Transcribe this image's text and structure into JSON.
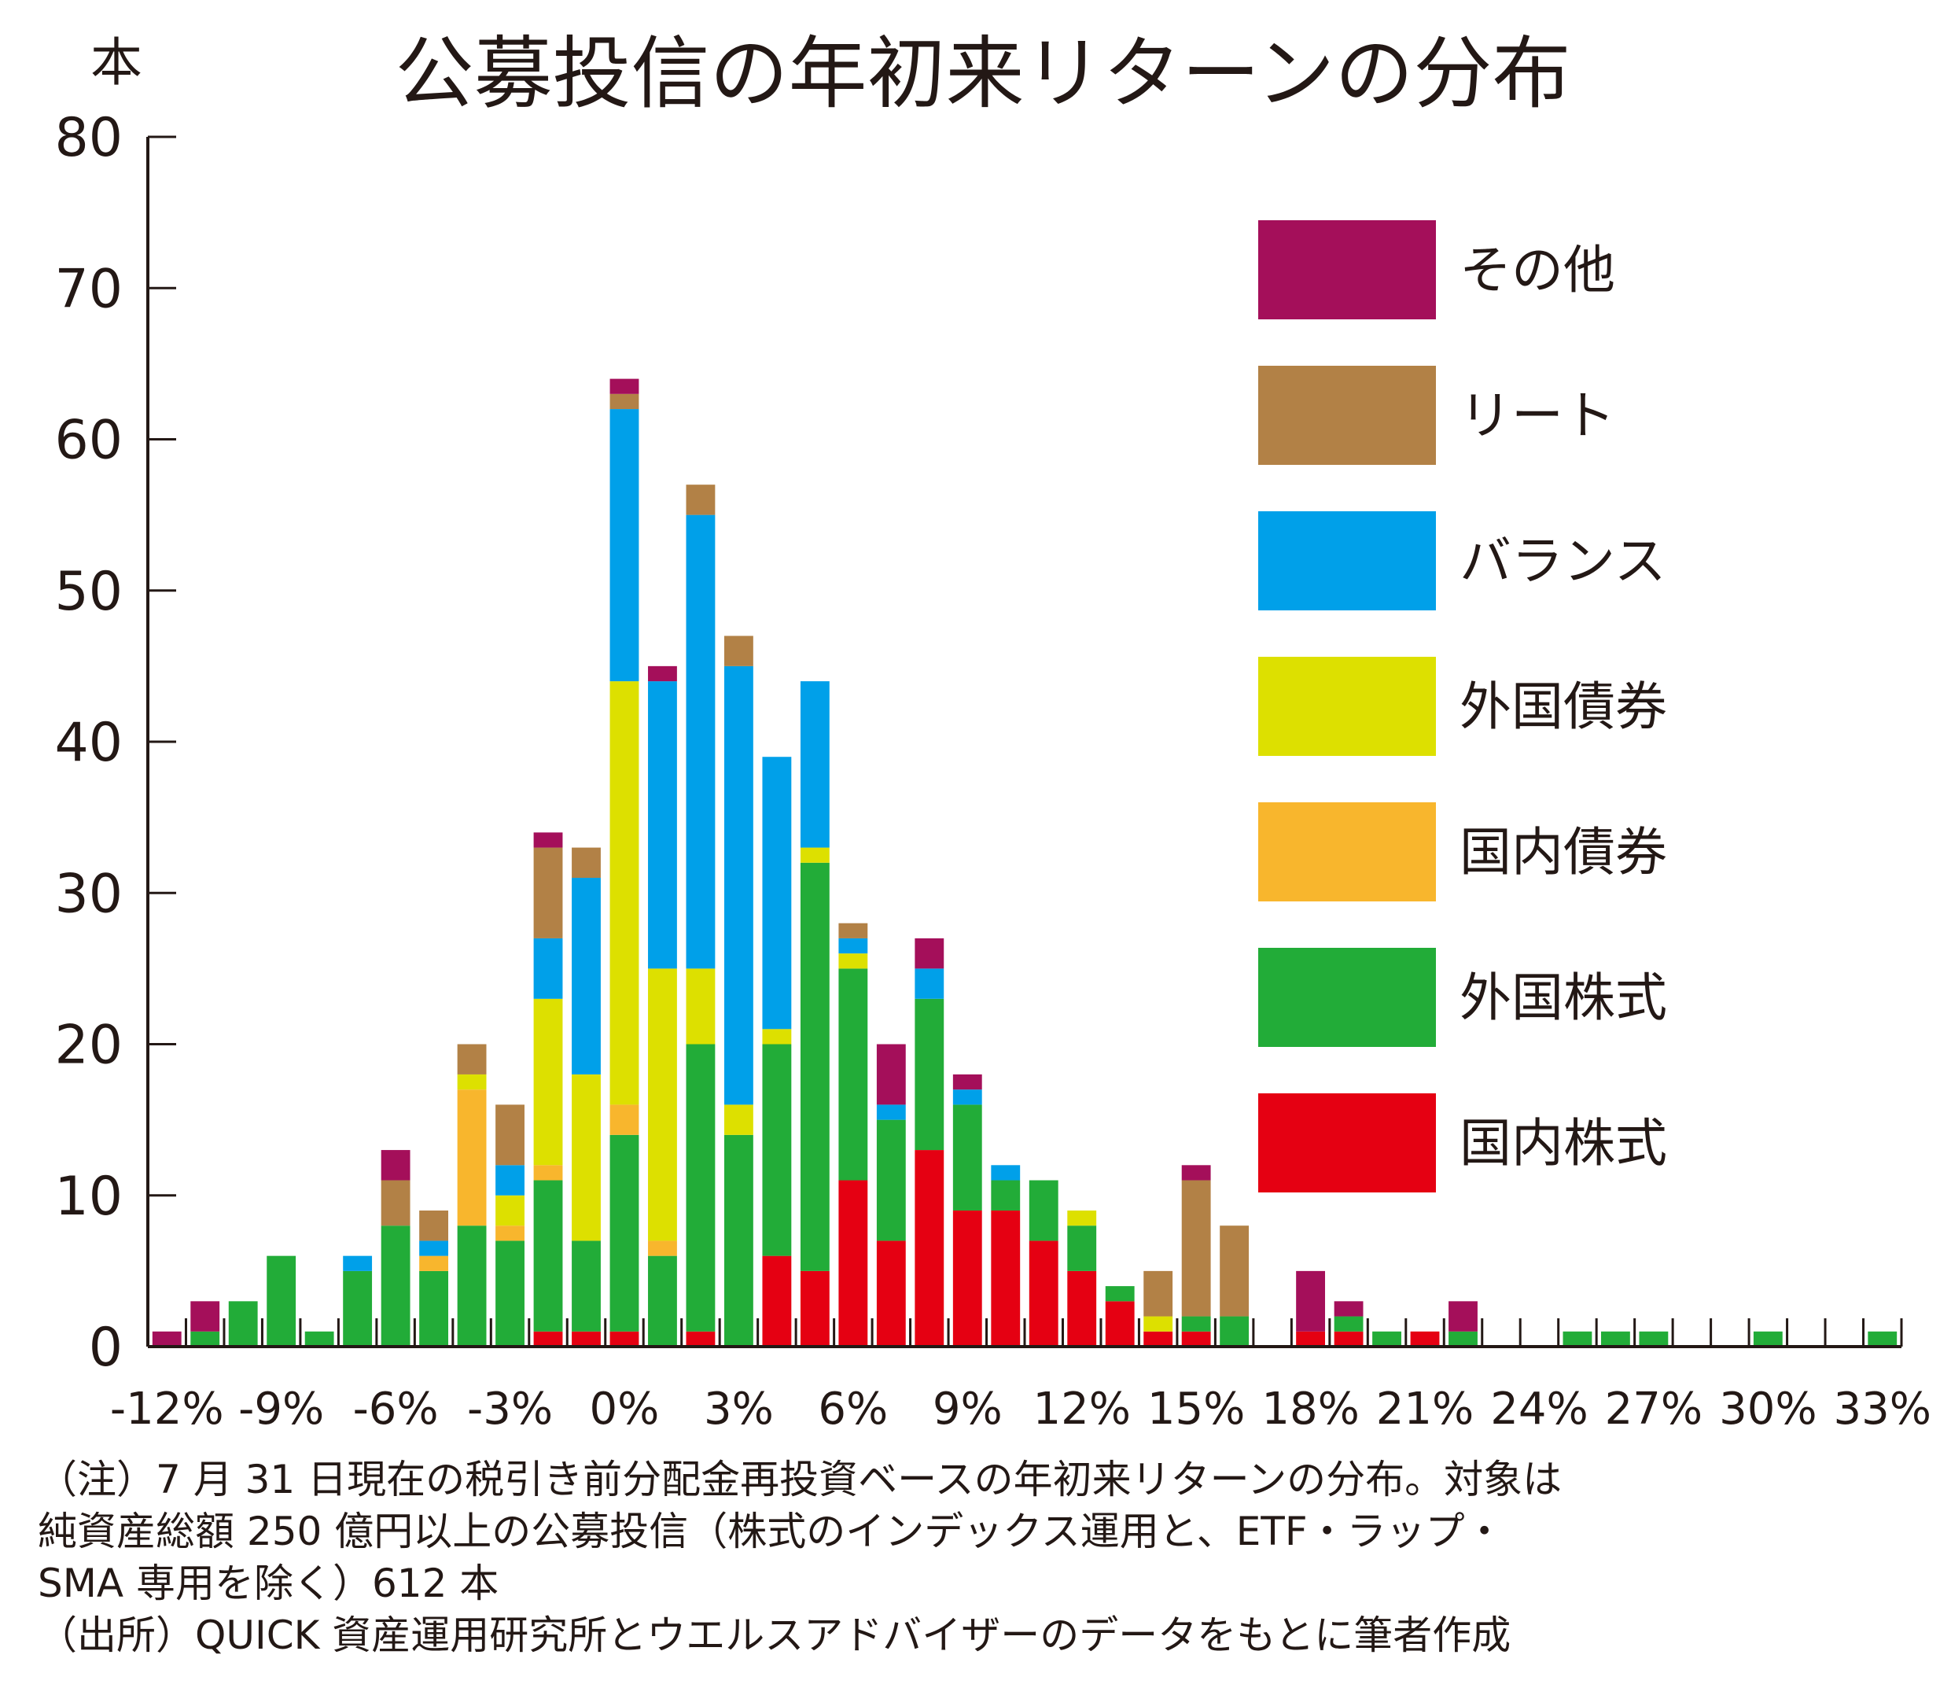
{
  "chart_data": {
    "type": "bar",
    "stacked": true,
    "title": "公募投信の年初来リターンの分布",
    "ylabel": "本",
    "ylim": [
      0,
      80
    ],
    "yticks": [
      "0",
      "10",
      "20",
      "30",
      "40",
      "50",
      "60",
      "70",
      "80"
    ],
    "xtick_labels": [
      "-12%",
      "-9%",
      "-6%",
      "-3%",
      "0%",
      "3%",
      "6%",
      "9%",
      "12%",
      "15%",
      "18%",
      "21%",
      "24%",
      "27%",
      "30%",
      "33%"
    ],
    "x": [
      -12,
      -11,
      -10,
      -9,
      -8,
      -7,
      -6,
      -5,
      -4,
      -3,
      -2,
      -1,
      0,
      1,
      2,
      3,
      4,
      5,
      6,
      7,
      8,
      9,
      10,
      11,
      12,
      13,
      14,
      15,
      16,
      17,
      18,
      19,
      20,
      21,
      22,
      23,
      24,
      25,
      26,
      27,
      28,
      29,
      30,
      31,
      32,
      33
    ],
    "legend_position": "top-right",
    "series": [
      {
        "name": "国内株式",
        "color": "#e50012",
        "values": [
          0,
          0,
          0,
          0,
          0,
          0,
          0,
          0,
          0,
          0,
          1,
          1,
          1,
          0,
          1,
          0,
          6,
          5,
          11,
          7,
          13,
          9,
          9,
          7,
          5,
          3,
          1,
          1,
          0,
          0,
          1,
          1,
          0,
          1,
          0,
          0,
          0,
          0,
          0,
          0,
          0,
          0,
          0,
          0,
          0,
          0
        ]
      },
      {
        "name": "外国株式",
        "color": "#22ac38",
        "values": [
          0,
          1,
          3,
          6,
          1,
          5,
          8,
          5,
          8,
          7,
          10,
          6,
          13,
          6,
          19,
          14,
          14,
          27,
          14,
          8,
          10,
          7,
          2,
          4,
          3,
          1,
          0,
          1,
          2,
          0,
          0,
          1,
          1,
          0,
          1,
          0,
          0,
          1,
          1,
          1,
          0,
          0,
          1,
          0,
          0,
          1
        ]
      },
      {
        "name": "国内債券",
        "color": "#f8b62d",
        "values": [
          0,
          0,
          0,
          0,
          0,
          0,
          0,
          1,
          9,
          1,
          1,
          0,
          2,
          1,
          0,
          0,
          0,
          0,
          0,
          0,
          0,
          0,
          0,
          0,
          0,
          0,
          0,
          0,
          0,
          0,
          0,
          0,
          0,
          0,
          0,
          0,
          0,
          0,
          0,
          0,
          0,
          0,
          0,
          0,
          0,
          0
        ]
      },
      {
        "name": "外国債券",
        "color": "#dde000",
        "values": [
          0,
          0,
          0,
          0,
          0,
          0,
          0,
          0,
          1,
          2,
          11,
          11,
          28,
          18,
          5,
          2,
          1,
          1,
          1,
          0,
          0,
          0,
          0,
          0,
          1,
          0,
          1,
          0,
          0,
          0,
          0,
          0,
          0,
          0,
          0,
          0,
          0,
          0,
          0,
          0,
          0,
          0,
          0,
          0,
          0,
          0
        ]
      },
      {
        "name": "バランス",
        "color": "#00a0e9",
        "values": [
          0,
          0,
          0,
          0,
          0,
          1,
          0,
          1,
          0,
          2,
          4,
          13,
          18,
          19,
          30,
          29,
          18,
          11,
          1,
          1,
          2,
          1,
          1,
          0,
          0,
          0,
          0,
          0,
          0,
          0,
          0,
          0,
          0,
          0,
          0,
          0,
          0,
          0,
          0,
          0,
          0,
          0,
          0,
          0,
          0,
          0
        ]
      },
      {
        "name": "リート",
        "color": "#b28146",
        "values": [
          0,
          0,
          0,
          0,
          0,
          0,
          3,
          2,
          2,
          4,
          6,
          2,
          1,
          0,
          2,
          2,
          0,
          0,
          1,
          0,
          0,
          0,
          0,
          0,
          0,
          0,
          3,
          9,
          6,
          0,
          0,
          0,
          0,
          0,
          0,
          0,
          0,
          0,
          0,
          0,
          0,
          0,
          0,
          0,
          0,
          0
        ]
      },
      {
        "name": "その他",
        "color": "#a40f5a",
        "values": [
          1,
          2,
          0,
          0,
          0,
          0,
          2,
          0,
          0,
          0,
          1,
          0,
          1,
          1,
          0,
          0,
          0,
          0,
          0,
          4,
          2,
          1,
          0,
          0,
          0,
          0,
          0,
          1,
          0,
          0,
          4,
          1,
          0,
          0,
          2,
          0,
          0,
          0,
          0,
          0,
          0,
          0,
          0,
          0,
          0,
          0
        ]
      }
    ]
  },
  "notes": [
    "（注）7 月 31 日現在の税引き前分配金再投資ベースの年初来リターンの分布。対象は",
    "純資産総額 250 億円以上の公募投信（株式のインデックス運用と、ETF・ラップ・",
    "SMA 専用を除く）612 本",
    "（出所）QUICK 資産運用研究所とウエルスアドバイザーのデータをもとに筆者作成"
  ]
}
